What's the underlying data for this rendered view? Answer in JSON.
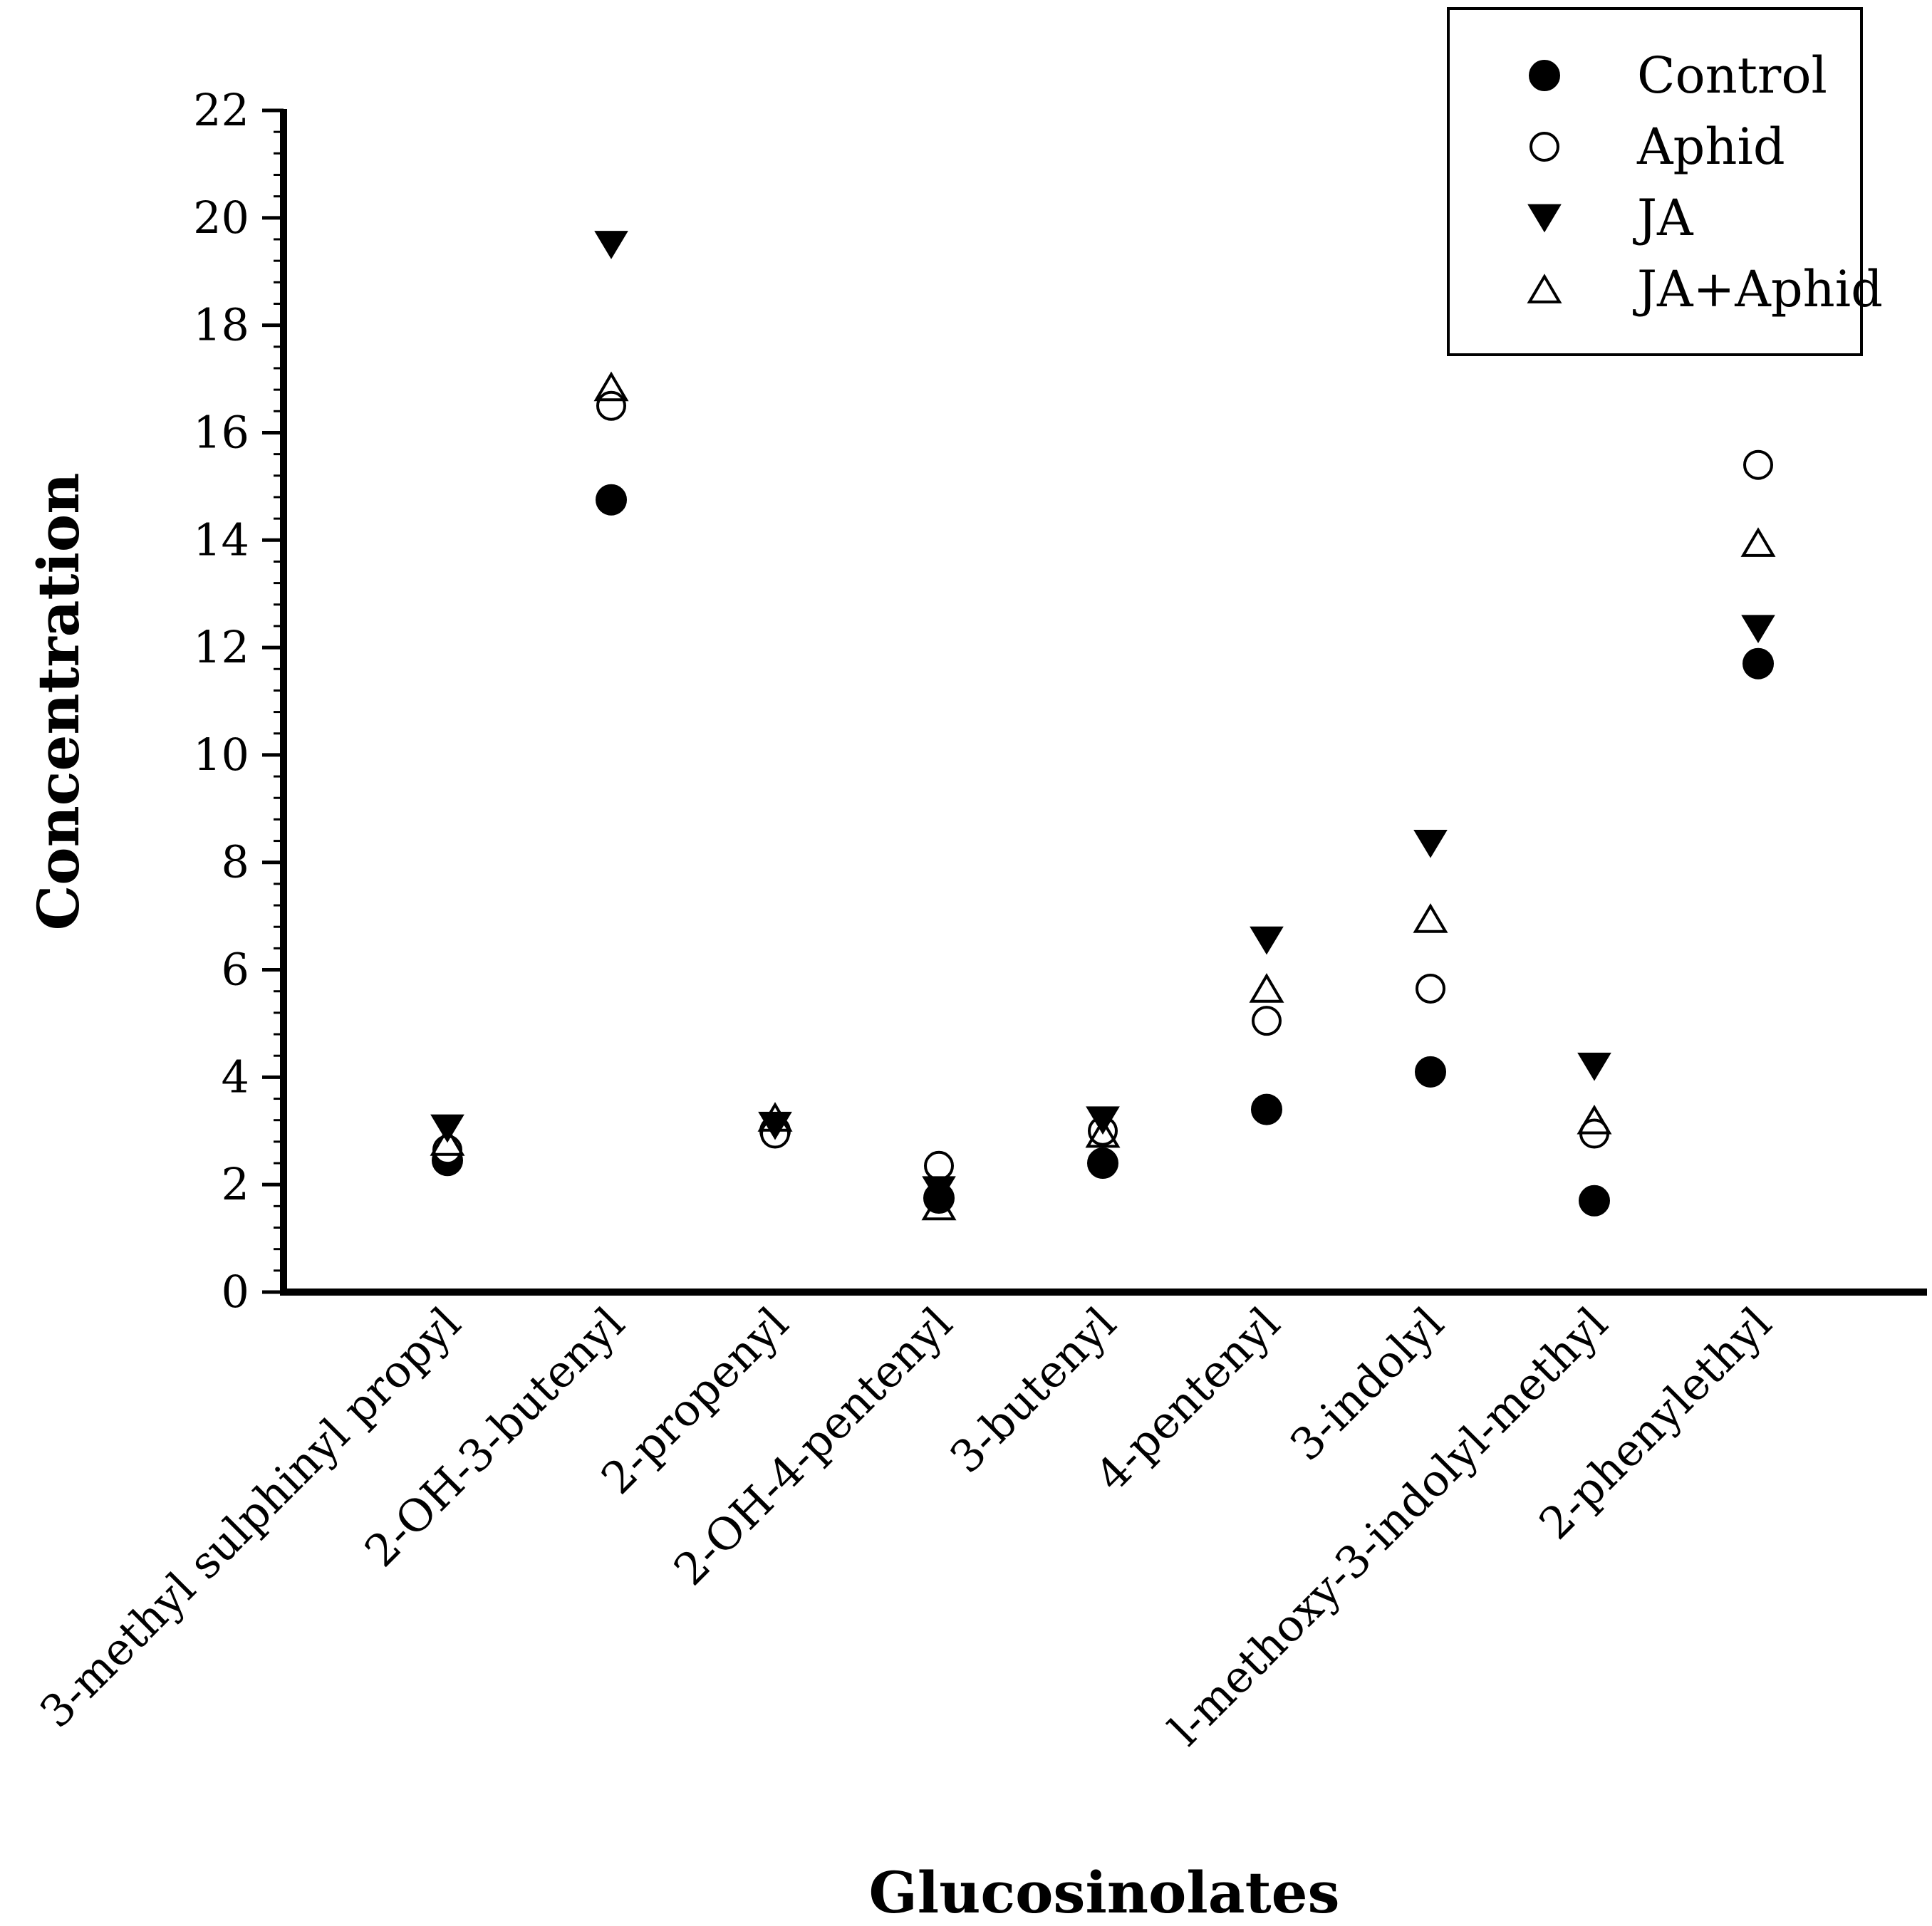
{
  "chart_data": {
    "type": "scatter",
    "title": "",
    "xlabel": "Glucosinolates",
    "ylabel": "Concentration",
    "ylim": [
      0,
      22
    ],
    "y_major_step": 2,
    "y_minor_step": 0.4,
    "y_ticks": [
      "0",
      "2",
      "4",
      "6",
      "8",
      "10",
      "12",
      "14",
      "16",
      "18",
      "20",
      "22"
    ],
    "legend_position": "top-right",
    "categories": [
      "3-methyl sulphinyl propyl",
      "2-OH-3-butenyl",
      "2-propenyl",
      "2-OH-4-pentenyl",
      "3-butenyl",
      "4-pentenyl",
      "3-indolyl",
      "l-methoxy-3-indolyl-methyl",
      "2-phenylethyl"
    ],
    "series": [
      {
        "name": "Control",
        "marker": "filled-circle",
        "values": [
          2.45,
          14.75,
          3.0,
          1.75,
          2.4,
          3.4,
          4.1,
          1.7,
          11.7
        ]
      },
      {
        "name": "Aphid",
        "marker": "open-circle",
        "values": [
          2.65,
          16.5,
          2.95,
          2.35,
          3.0,
          5.05,
          5.65,
          2.95,
          15.4
        ]
      },
      {
        "name": "JA",
        "marker": "filled-triangle-down",
        "values": [
          3.05,
          19.5,
          3.1,
          1.9,
          3.2,
          6.55,
          8.35,
          4.2,
          12.35
        ]
      },
      {
        "name": "JA+Aphid",
        "marker": "open-triangle-up",
        "values": [
          2.8,
          16.85,
          3.25,
          1.6,
          2.95,
          5.65,
          6.95,
          3.2,
          13.95
        ]
      }
    ]
  }
}
